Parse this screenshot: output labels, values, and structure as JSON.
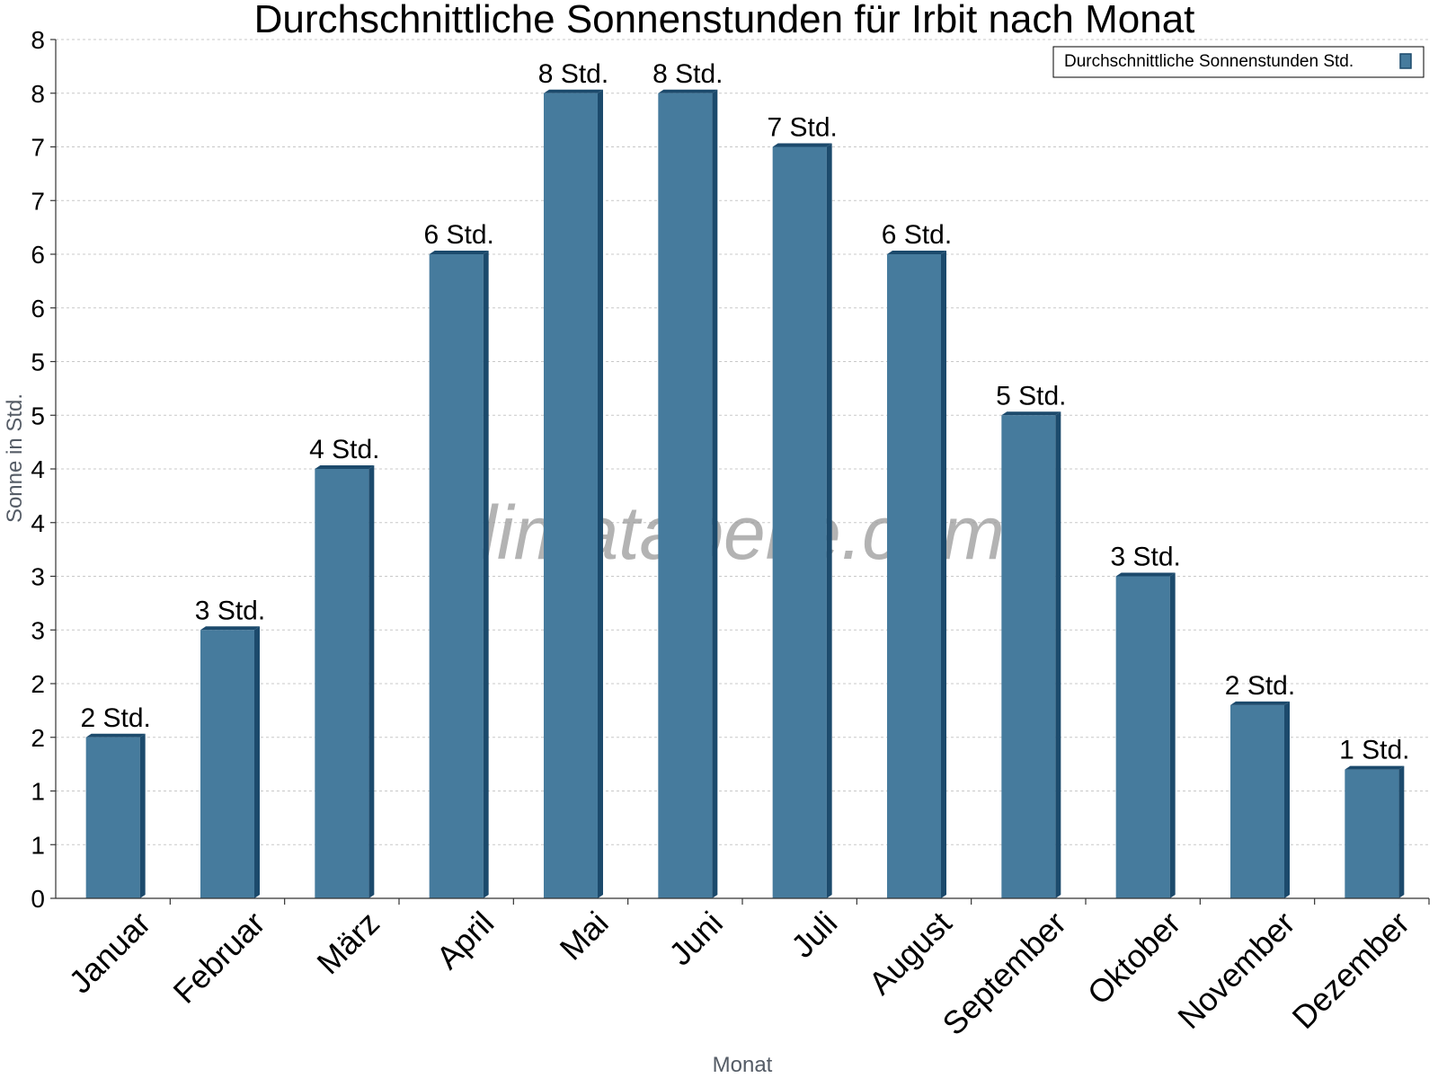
{
  "chart_data": {
    "type": "bar",
    "title": "Durchschnittliche Sonnenstunden für Irbit nach Monat",
    "xlabel": "Monat",
    "ylabel": "Sonne in Std.",
    "ylim": [
      0,
      8
    ],
    "y_tick_values": [
      0,
      0.5,
      1,
      1.5,
      2,
      2.5,
      3,
      3.5,
      4,
      4.5,
      5,
      5.5,
      6,
      6.5,
      7,
      7.5,
      8
    ],
    "y_tick_labels": [
      "0",
      "1",
      "1",
      "2",
      "2",
      "3",
      "3",
      "4",
      "4",
      "5",
      "5",
      "6",
      "6",
      "7",
      "7",
      "8",
      "8"
    ],
    "grid": true,
    "legend_position": "top-right",
    "categories": [
      "Januar",
      "Februar",
      "März",
      "April",
      "Mai",
      "Juni",
      "Juli",
      "August",
      "September",
      "Oktober",
      "November",
      "Dezember"
    ],
    "series": [
      {
        "name": "Durchschnittliche Sonnenstunden Std.",
        "values": [
          1.5,
          2.5,
          4,
          6,
          7.5,
          7.5,
          7,
          6,
          4.5,
          3,
          1.8,
          1.2
        ],
        "labels": [
          "2 Std.",
          "3 Std.",
          "4 Std.",
          "6 Std.",
          "8 Std.",
          "8 Std.",
          "7 Std.",
          "6 Std.",
          "5 Std.",
          "3 Std.",
          "2 Std.",
          "1 Std."
        ],
        "color": "#467b9d",
        "side_color": "#1c4a6c"
      }
    ]
  },
  "watermark": "klimatabelle.com"
}
